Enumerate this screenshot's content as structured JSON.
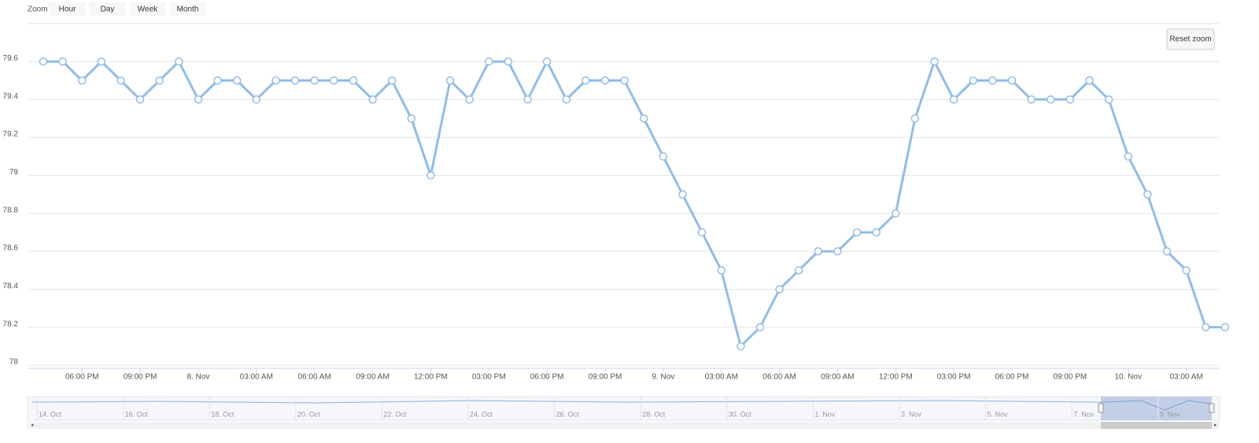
{
  "chart_data": {
    "type": "line",
    "categories": [
      null,
      null,
      "06:00 PM",
      null,
      null,
      "09:00 PM",
      null,
      null,
      "8. Nov",
      null,
      null,
      "03:00 AM",
      null,
      null,
      "06:00 AM",
      null,
      null,
      "09:00 AM",
      null,
      null,
      "12:00 PM",
      null,
      null,
      "03:00 PM",
      null,
      null,
      "06:00 PM",
      null,
      null,
      "09:00 PM",
      null,
      null,
      "9. Nov",
      null,
      null,
      "03:00 AM",
      null,
      null,
      "06:00 AM",
      null,
      null,
      "09:00 AM",
      null,
      null,
      "12:00 PM",
      null,
      null,
      "03:00 PM",
      null,
      null,
      "06:00 PM",
      null,
      null,
      "09:00 PM",
      null,
      null,
      "10. Nov",
      null,
      null,
      "03:00 AM",
      null,
      null
    ],
    "series": [
      {
        "color": "#90bde8",
        "values": [
          79.6,
          79.6,
          79.5,
          79.6,
          79.5,
          79.4,
          79.5,
          79.6,
          79.4,
          79.5,
          79.5,
          79.4,
          79.5,
          79.5,
          79.5,
          79.5,
          79.5,
          79.4,
          79.5,
          79.3,
          79.0,
          79.5,
          79.4,
          79.6,
          79.6,
          79.4,
          79.6,
          79.4,
          79.5,
          79.5,
          79.5,
          79.3,
          79.1,
          78.9,
          78.7,
          78.5,
          78.1,
          78.2,
          78.4,
          78.5,
          78.6,
          78.6,
          78.7,
          78.7,
          78.8,
          79.3,
          79.6,
          79.4,
          79.5,
          79.5,
          79.5,
          79.4,
          79.4,
          79.4,
          79.5,
          79.4,
          79.1,
          78.9,
          78.6,
          78.5,
          78.2,
          78.2
        ]
      }
    ],
    "ylim": [
      78,
      79.8
    ],
    "yticks": [
      78,
      78.2,
      78.4,
      78.6,
      78.8,
      79,
      79.2,
      79.4,
      79.6
    ],
    "grid": true
  },
  "range_selector": {
    "label": "Zoom",
    "buttons": [
      "Hour",
      "Day",
      "Week",
      "Month"
    ]
  },
  "reset_zoom": "Reset zoom",
  "navigator": {
    "labels": [
      "14. Oct",
      "16. Oct",
      "18. Oct",
      "20. Oct",
      "22. Oct",
      "24. Oct",
      "26. Oct",
      "28. Oct",
      "30. Oct",
      "1. Nov",
      "3. Nov",
      "5. Nov",
      "7. Nov",
      "9. Nov"
    ]
  }
}
